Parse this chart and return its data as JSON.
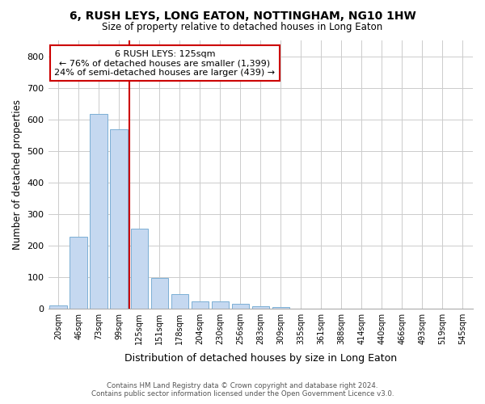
{
  "title1": "6, RUSH LEYS, LONG EATON, NOTTINGHAM, NG10 1HW",
  "title2": "Size of property relative to detached houses in Long Eaton",
  "xlabel": "Distribution of detached houses by size in Long Eaton",
  "ylabel": "Number of detached properties",
  "footer1": "Contains HM Land Registry data © Crown copyright and database right 2024.",
  "footer2": "Contains public sector information licensed under the Open Government Licence v3.0.",
  "bar_labels": [
    "20sqm",
    "46sqm",
    "73sqm",
    "99sqm",
    "125sqm",
    "151sqm",
    "178sqm",
    "204sqm",
    "230sqm",
    "256sqm",
    "283sqm",
    "309sqm",
    "335sqm",
    "361sqm",
    "388sqm",
    "414sqm",
    "440sqm",
    "466sqm",
    "493sqm",
    "519sqm",
    "545sqm"
  ],
  "bar_values": [
    10,
    228,
    617,
    568,
    253,
    97,
    46,
    22,
    22,
    14,
    7,
    5,
    0,
    0,
    0,
    0,
    0,
    0,
    0,
    0,
    0
  ],
  "bar_color": "#c5d8f0",
  "bar_edge_color": "#7bafd4",
  "vline_x": 3.5,
  "vline_color": "#cc0000",
  "annotation_text": "6 RUSH LEYS: 125sqm\n← 76% of detached houses are smaller (1,399)\n24% of semi-detached houses are larger (439) →",
  "annotation_box_color": "#ffffff",
  "annotation_box_edge": "#cc0000",
  "ylim": [
    0,
    850
  ],
  "yticks": [
    0,
    100,
    200,
    300,
    400,
    500,
    600,
    700,
    800
  ],
  "grid_color": "#cccccc",
  "bg_color": "#ffffff",
  "fig_bg_color": "#ffffff"
}
